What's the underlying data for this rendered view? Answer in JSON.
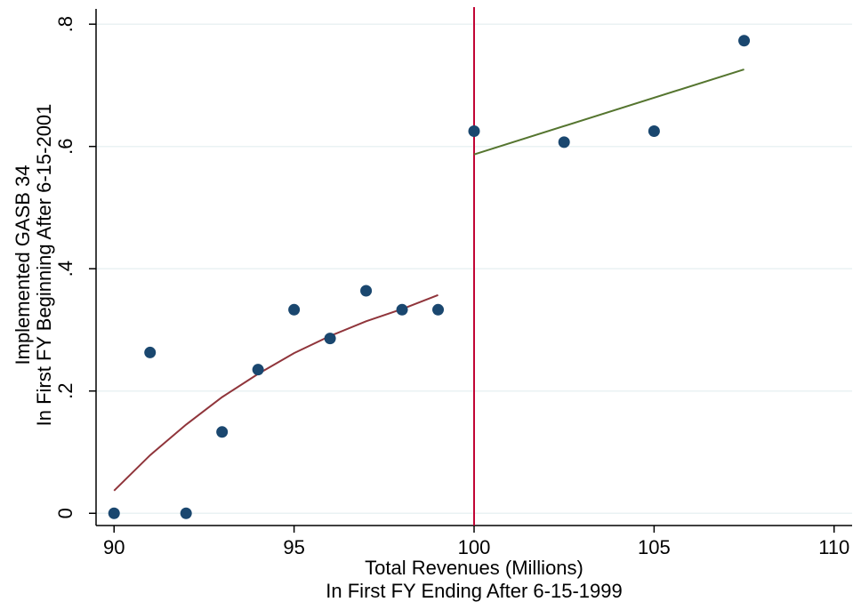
{
  "chart_data": {
    "type": "scatter",
    "xlabel": [
      "Total Revenues (Millions)",
      "In First FY Ending After 6-15-1999"
    ],
    "ylabel": [
      "Implemented GASB 34",
      "In First FY Beginning After 6-15-2001"
    ],
    "xlim": [
      89.5,
      110.5
    ],
    "ylim": [
      -0.02,
      0.825
    ],
    "x_ticks": [
      {
        "value": 90,
        "label": "90"
      },
      {
        "value": 95,
        "label": "95"
      },
      {
        "value": 100,
        "label": "100"
      },
      {
        "value": 105,
        "label": "105"
      },
      {
        "value": 110,
        "label": "110"
      }
    ],
    "y_ticks": [
      {
        "value": 0,
        "label": "0"
      },
      {
        "value": 0.2,
        "label": ".2"
      },
      {
        "value": 0.4,
        "label": ".4"
      },
      {
        "value": 0.6,
        "label": ".6"
      },
      {
        "value": 0.8,
        "label": ".8"
      }
    ],
    "grid": true,
    "series": [
      {
        "type": "scatter",
        "color": "#1a476f",
        "x": [
          90,
          91,
          92,
          93,
          94,
          95,
          96,
          97,
          98,
          99,
          100,
          102.5,
          105,
          107.5
        ],
        "y": [
          0,
          0.263,
          0,
          0.133,
          0.235,
          0.333,
          0.286,
          0.364,
          0.333,
          0.333,
          0.625,
          0.607,
          0.625,
          0.773
        ]
      },
      {
        "type": "line",
        "color": "#90353b",
        "x": [
          90,
          91,
          92,
          93,
          94,
          95,
          96,
          97,
          98,
          99
        ],
        "y": [
          0.037,
          0.095,
          0.145,
          0.19,
          0.228,
          0.262,
          0.29,
          0.314,
          0.334,
          0.357
        ]
      },
      {
        "type": "line",
        "color": "#55752f",
        "x": [
          100,
          107.5
        ],
        "y": [
          0.587,
          0.726
        ]
      }
    ],
    "reference_line": {
      "axis": "x",
      "value": 100,
      "color": "#c10534"
    }
  }
}
